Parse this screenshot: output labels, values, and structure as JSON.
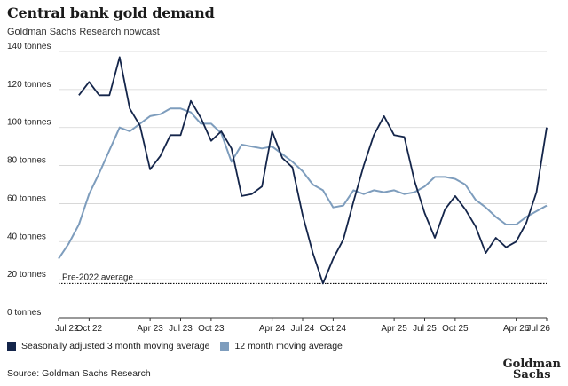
{
  "title": "Central bank gold demand",
  "subtitle": "Goldman Sachs Research nowcast",
  "source": "Source: Goldman Sachs Research",
  "logo": {
    "line1": "Goldman",
    "line2": "Sachs"
  },
  "colors": {
    "series1": "#14254a",
    "series2": "#7e9dbd",
    "grid": "#d3d3d3",
    "axis": "#333333"
  },
  "chart_data": {
    "type": "line",
    "ylim": [
      0,
      140
    ],
    "yticks": [
      0,
      20,
      40,
      60,
      80,
      100,
      120,
      140
    ],
    "ytick_labels": [
      "0 tonnes",
      "20 tonnes",
      "40 tonnes",
      "60 tonnes",
      "80 tonnes",
      "100 tonnes",
      "120 tonnes",
      "140 tonnes"
    ],
    "x_start": "2022-07",
    "x_end": "2026-07",
    "xtick_dates": [
      "2022-07",
      "2022-10",
      "2023-04",
      "2023-07",
      "2023-10",
      "2024-04",
      "2024-07",
      "2024-10",
      "2025-04",
      "2025-07",
      "2025-10",
      "2026-04",
      "2026-07"
    ],
    "xtick_labels": [
      "Jul 22",
      "Oct 22",
      "Apr 23",
      "Jul 23",
      "Oct 23",
      "Apr 24",
      "Jul 24",
      "Oct 24",
      "Apr 25",
      "Jul 25",
      "Oct 25",
      "Apr 26",
      "Jul 26"
    ],
    "legend": [
      "Seasonally adjusted 3 month moving average",
      "12 month moving average"
    ],
    "reference_line": {
      "value": 18,
      "label": "Pre-2022 average"
    },
    "series": [
      {
        "name": "Seasonally adjusted 3 month moving average",
        "x": [
          "2022-09",
          "2022-10",
          "2022-11",
          "2022-12",
          "2023-01",
          "2023-02",
          "2023-03",
          "2023-04",
          "2023-05",
          "2023-06",
          "2023-07",
          "2023-08",
          "2023-09",
          "2023-10",
          "2023-11",
          "2023-12",
          "2024-01",
          "2024-02",
          "2024-03",
          "2024-04",
          "2024-05",
          "2024-06",
          "2024-07",
          "2024-08",
          "2024-09",
          "2024-10",
          "2024-11",
          "2024-12",
          "2025-01",
          "2025-02",
          "2025-03",
          "2025-04",
          "2025-05",
          "2025-06",
          "2025-07",
          "2025-08",
          "2025-09",
          "2025-10",
          "2025-11",
          "2025-12",
          "2026-01",
          "2026-02",
          "2026-03",
          "2026-04",
          "2026-05",
          "2026-06",
          "2026-07"
        ],
        "values": [
          117,
          124,
          117,
          117,
          137,
          110,
          101,
          78,
          85,
          96,
          96,
          114,
          105,
          93,
          98,
          89,
          64,
          65,
          69,
          98,
          84,
          79,
          54,
          34,
          18,
          31,
          41,
          61,
          80,
          96,
          106,
          96,
          95,
          72,
          55,
          42,
          57,
          64,
          57,
          48,
          34,
          42,
          37,
          40,
          50,
          66,
          100
        ]
      },
      {
        "name": "12 month moving average",
        "x": [
          "2022-07",
          "2022-08",
          "2022-09",
          "2022-10",
          "2022-11",
          "2022-12",
          "2023-01",
          "2023-02",
          "2023-03",
          "2023-04",
          "2023-05",
          "2023-06",
          "2023-07",
          "2023-08",
          "2023-09",
          "2023-10",
          "2023-11",
          "2023-12",
          "2024-01",
          "2024-02",
          "2024-03",
          "2024-04",
          "2024-05",
          "2024-06",
          "2024-07",
          "2024-08",
          "2024-09",
          "2024-10",
          "2024-11",
          "2024-12",
          "2025-01",
          "2025-02",
          "2025-03",
          "2025-04",
          "2025-05",
          "2025-06",
          "2025-07",
          "2025-08",
          "2025-09",
          "2025-10",
          "2025-11",
          "2025-12",
          "2026-01",
          "2026-02",
          "2026-03",
          "2026-04",
          "2026-05",
          "2026-06",
          "2026-07"
        ],
        "values": [
          31,
          39,
          49,
          65,
          76,
          88,
          100,
          98,
          102,
          106,
          107,
          110,
          110,
          108,
          102,
          102,
          97,
          82,
          91,
          90,
          89,
          90,
          86,
          82,
          77,
          70,
          67,
          58,
          59,
          67,
          65,
          67,
          66,
          67,
          65,
          66,
          69,
          74,
          74,
          73,
          70,
          62,
          58,
          53,
          49,
          49,
          53,
          56,
          59
        ]
      }
    ]
  }
}
